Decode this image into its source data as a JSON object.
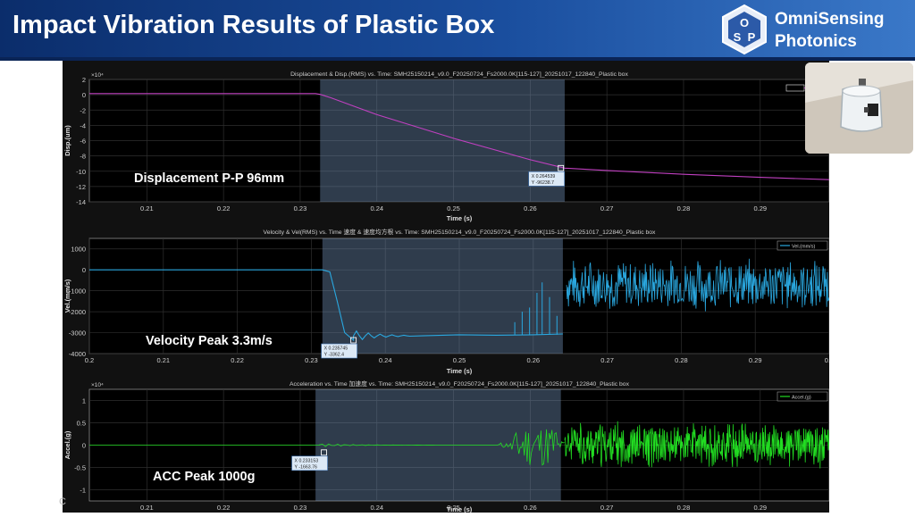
{
  "slide": {
    "title": "Impact Vibration Results of Plastic Box",
    "brand_line1": "OmniSensing",
    "brand_line2": "Photonics",
    "logo_letters": [
      "O",
      "S",
      "P"
    ],
    "footer_mark": "C",
    "colors": {
      "header": "#1a4e9e",
      "plot_bg": "#000000",
      "panel_bg": "#111111",
      "highlight": "#6f8fb5"
    }
  },
  "photo": {
    "icon": "plastic-box-with-sensor-photo"
  },
  "chart_data": [
    {
      "type": "line",
      "title": "Displacement & Disp.(RMS) vs. Time: SMH25150214_v9.0_F20250724_Fs2000.0K[115-127]_20251017_122840_Plastic box",
      "xlabel": "Time (s)",
      "ylabel": "Disp.(um)",
      "y_exponent": "×10⁴",
      "xlim": [
        0.2025,
        0.299
      ],
      "ylim": [
        -14,
        2
      ],
      "xticks": [
        "0.21",
        "0.22",
        "0.23",
        "0.24",
        "0.25",
        "0.26",
        "0.27",
        "0.28",
        "0.29"
      ],
      "yticks": [
        "2",
        "0",
        "-2",
        "-4",
        "-6",
        "-8",
        "-10",
        "-12",
        "-14"
      ],
      "grid": true,
      "legend": "top-right",
      "highlight_x": [
        0.2326,
        0.2645
      ],
      "annotation_text": "Displacement P-P 96mm",
      "datatip": {
        "x": 0.264,
        "y": -9.6,
        "x_label": "X 0.264539",
        "y_label": "Y -96238.7"
      },
      "series": [
        {
          "color": "#c040c0",
          "x": [
            0.2025,
            0.232,
            0.2326,
            0.234,
            0.24,
            0.25,
            0.26,
            0.2645,
            0.27,
            0.28,
            0.29,
            0.299
          ],
          "y": [
            0.15,
            0.15,
            0.05,
            -0.4,
            -2.6,
            -5.7,
            -8.5,
            -9.6,
            -9.9,
            -10.4,
            -10.8,
            -11.1
          ]
        }
      ]
    },
    {
      "type": "line",
      "title": "Velocity & Vel(RMS) vs. Time 速度 & 速度均方根 vs. Time: SMH25150214_v9.0_F20250724_Fs2000.0K[115-127]_20251017_122840_Plastic box",
      "xlabel": "Time (s)",
      "ylabel": "Vel.(mm/s)",
      "xlim": [
        0.2,
        0.3
      ],
      "ylim": [
        -4000,
        1500
      ],
      "xticks": [
        "0.2",
        "0.21",
        "0.22",
        "0.23",
        "0.24",
        "0.25",
        "0.26",
        "0.27",
        "0.28",
        "0.29",
        "0.3"
      ],
      "yticks": [
        "1000",
        "0",
        "-1000",
        "-2000",
        "-3000",
        "-4000"
      ],
      "grid": true,
      "legend": "top-right",
      "legend_entry": "Vel.(mm/s)",
      "highlight_x": [
        0.2315,
        0.264
      ],
      "annotation_text": "Velocity Peak 3.3m/s",
      "datatip": {
        "x": 0.2357,
        "y": -3362,
        "x_label": "X 0.235745",
        "y_label": "Y -3362.4"
      },
      "series": [
        {
          "name": "Vel.(mm/s)",
          "color": "#2aa8e0",
          "style": "oscillating",
          "seed": 7,
          "x": [
            0.2,
            0.2315,
            0.2325,
            0.2335,
            0.2345,
            0.2357,
            0.238,
            0.242,
            0.245,
            0.25,
            0.255,
            0.26,
            0.264
          ],
          "y": [
            0,
            0,
            -100,
            -1500,
            -3000,
            -3362,
            -3150,
            -3050,
            -3150,
            -3100,
            -3120,
            -3100,
            -3060
          ],
          "noise_start": 0.2645,
          "noise_end": 0.3,
          "noise_center": -700,
          "noise_amp": 1300
        }
      ]
    },
    {
      "type": "line",
      "title": "Acceleration vs. Time 加速度 vs. Time: SMH25150214_v9.0_F20250724_Fs2000.0K[115-127]_20251017_122840_Plastic box",
      "xlabel": "Time (s)",
      "ylabel": "Accel.(g)",
      "y_exponent": "×10⁴",
      "xlim": [
        0.2025,
        0.299
      ],
      "ylim": [
        -1.25,
        1.25
      ],
      "xticks": [
        "0.21",
        "0.22",
        "0.23",
        "0.24",
        "0.25",
        "0.26",
        "0.27",
        "0.28",
        "0.29"
      ],
      "yticks": [
        "1",
        "0.5",
        "0",
        "-0.5",
        "-1"
      ],
      "grid": true,
      "legend": "top-right",
      "legend_entry": "Accel.(g)",
      "highlight_x": [
        0.232,
        0.264
      ],
      "annotation_text": "ACC Peak 1000g",
      "datatip": {
        "x": 0.2331,
        "y": -0.166,
        "x_label": "X 0.233153",
        "y_label": "Y -1663.76"
      },
      "series": [
        {
          "name": "Accel.(g)",
          "color": "#22dd22",
          "style": "noise",
          "seed": 11,
          "x": [
            0.2025,
            0.232,
            0.234,
            0.256,
            0.264
          ],
          "y": [
            0,
            0,
            0,
            0,
            0
          ],
          "noise_start": 0.2645,
          "noise_end": 0.299,
          "noise_center": 0,
          "noise_amp": 0.55
        }
      ]
    }
  ]
}
